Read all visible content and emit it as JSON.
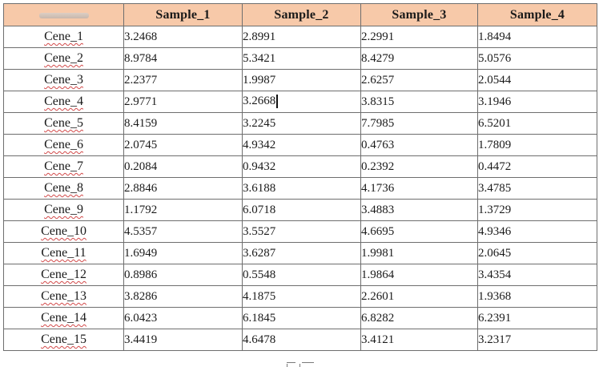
{
  "table": {
    "headers": [
      "",
      "Sample_1",
      "Sample_2",
      "Sample_3",
      "Sample_4"
    ],
    "rows": [
      {
        "label": "Cene_1",
        "values": [
          "3.2468",
          "2.8991",
          "2.2991",
          "1.8494"
        ]
      },
      {
        "label": "Cene_2",
        "values": [
          "8.9784",
          "5.3421",
          "8.4279",
          "5.0576"
        ]
      },
      {
        "label": "Cene_3",
        "values": [
          "2.2377",
          "1.9987",
          "2.6257",
          "2.0544"
        ]
      },
      {
        "label": "Cene_4",
        "values": [
          "2.9771",
          "3.2668",
          "3.8315",
          "3.1946"
        ]
      },
      {
        "label": "Cene_5",
        "values": [
          "8.4159",
          "3.2245",
          "7.7985",
          "6.5201"
        ]
      },
      {
        "label": "Cene_6",
        "values": [
          "2.0745",
          "4.9342",
          "0.4763",
          "1.7809"
        ]
      },
      {
        "label": "Cene_7",
        "values": [
          "0.2084",
          "0.9432",
          "0.2392",
          "0.4472"
        ]
      },
      {
        "label": "Cene_8",
        "values": [
          "2.8846",
          "3.6188",
          "4.1736",
          "3.4785"
        ]
      },
      {
        "label": "Cene_9",
        "values": [
          "1.1792",
          "6.0718",
          "3.4883",
          "1.3729"
        ]
      },
      {
        "label": "Cene_10",
        "values": [
          "4.5357",
          "3.5527",
          "4.6695",
          "4.9346"
        ]
      },
      {
        "label": "Cene_11",
        "values": [
          "1.6949",
          "3.6287",
          "1.9981",
          "2.0645"
        ]
      },
      {
        "label": "Cene_12",
        "values": [
          "0.8986",
          "0.5548",
          "1.9864",
          "3.4354"
        ]
      },
      {
        "label": "Cene_13",
        "values": [
          "3.8286",
          "4.1875",
          "2.2601",
          "1.9368"
        ]
      },
      {
        "label": "Cene_14",
        "values": [
          "6.0423",
          "6.1845",
          "6.8282",
          "6.2391"
        ]
      },
      {
        "label": "Cene_15",
        "values": [
          "3.4419",
          "4.6478",
          "3.4121",
          "3.2317"
        ]
      }
    ]
  },
  "colors": {
    "header_background": "#f7c9a9",
    "grid_line": "#6e6e6e",
    "spellcheck_underline": "#d24a4a"
  },
  "text_cursor": {
    "row": 3,
    "column": 1
  }
}
